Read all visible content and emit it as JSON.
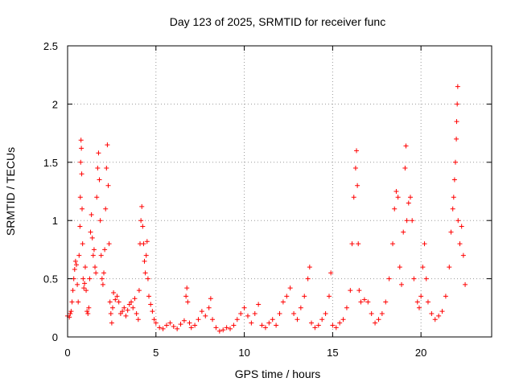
{
  "chart_data": {
    "type": "scatter",
    "title": "Day 123 of 2025, SRMTID for receiver func",
    "xlabel": "GPS time / hours",
    "ylabel": "SRMTID / TECUs",
    "xlim": [
      0,
      24
    ],
    "ylim": [
      0,
      2.5
    ],
    "xticks": [
      0,
      5,
      10,
      15,
      20
    ],
    "yticks": [
      0,
      0.5,
      1,
      1.5,
      2,
      2.5
    ],
    "ytick_labels": [
      "0",
      "0.5",
      "1",
      "1.5",
      "2",
      "2.5"
    ],
    "grid": true,
    "marker": "+",
    "color": "#ff0000",
    "series": [
      {
        "name": "SRMTID",
        "points": [
          [
            0.0,
            0.18
          ],
          [
            0.1,
            0.17
          ],
          [
            0.15,
            0.2
          ],
          [
            0.2,
            0.22
          ],
          [
            0.25,
            0.3
          ],
          [
            0.3,
            0.4
          ],
          [
            0.35,
            0.5
          ],
          [
            0.4,
            0.58
          ],
          [
            0.45,
            0.65
          ],
          [
            0.5,
            0.62
          ],
          [
            0.55,
            0.45
          ],
          [
            0.6,
            0.3
          ],
          [
            0.65,
            0.7
          ],
          [
            0.7,
            0.95
          ],
          [
            0.72,
            1.2
          ],
          [
            0.74,
            1.5
          ],
          [
            0.76,
            1.69
          ],
          [
            0.78,
            1.62
          ],
          [
            0.8,
            1.4
          ],
          [
            0.82,
            1.1
          ],
          [
            0.85,
            0.8
          ],
          [
            0.88,
            0.5
          ],
          [
            0.92,
            0.42
          ],
          [
            0.96,
            0.46
          ],
          [
            1.0,
            0.6
          ],
          [
            1.05,
            0.4
          ],
          [
            1.1,
            0.22
          ],
          [
            1.15,
            0.2
          ],
          [
            1.2,
            0.25
          ],
          [
            1.25,
            0.5
          ],
          [
            1.3,
            0.9
          ],
          [
            1.35,
            1.05
          ],
          [
            1.4,
            0.85
          ],
          [
            1.45,
            0.7
          ],
          [
            1.5,
            0.75
          ],
          [
            1.55,
            0.6
          ],
          [
            1.6,
            0.55
          ],
          [
            1.65,
            1.2
          ],
          [
            1.7,
            1.45
          ],
          [
            1.75,
            1.58
          ],
          [
            1.8,
            1.35
          ],
          [
            1.85,
            1.0
          ],
          [
            1.9,
            0.7
          ],
          [
            1.95,
            0.5
          ],
          [
            2.0,
            0.45
          ],
          [
            2.05,
            0.55
          ],
          [
            2.1,
            0.75
          ],
          [
            2.15,
            1.1
          ],
          [
            2.2,
            1.45
          ],
          [
            2.25,
            1.65
          ],
          [
            2.3,
            1.3
          ],
          [
            2.35,
            0.8
          ],
          [
            2.4,
            0.3
          ],
          [
            2.45,
            0.2
          ],
          [
            2.5,
            0.12
          ],
          [
            2.55,
            0.25
          ],
          [
            2.6,
            0.38
          ],
          [
            2.7,
            0.32
          ],
          [
            2.8,
            0.35
          ],
          [
            2.9,
            0.3
          ],
          [
            3.0,
            0.2
          ],
          [
            3.1,
            0.22
          ],
          [
            3.2,
            0.25
          ],
          [
            3.3,
            0.18
          ],
          [
            3.4,
            0.23
          ],
          [
            3.5,
            0.28
          ],
          [
            3.6,
            0.3
          ],
          [
            3.7,
            0.25
          ],
          [
            3.8,
            0.33
          ],
          [
            3.9,
            0.2
          ],
          [
            4.0,
            0.15
          ],
          [
            4.05,
            0.4
          ],
          [
            4.1,
            0.8
          ],
          [
            4.15,
            1.0
          ],
          [
            4.2,
            1.12
          ],
          [
            4.25,
            0.95
          ],
          [
            4.3,
            0.8
          ],
          [
            4.35,
            0.65
          ],
          [
            4.4,
            0.55
          ],
          [
            4.45,
            0.7
          ],
          [
            4.5,
            0.82
          ],
          [
            4.55,
            0.5
          ],
          [
            4.6,
            0.35
          ],
          [
            4.7,
            0.28
          ],
          [
            4.8,
            0.22
          ],
          [
            4.9,
            0.15
          ],
          [
            5.0,
            0.12
          ],
          [
            5.2,
            0.08
          ],
          [
            5.4,
            0.07
          ],
          [
            5.6,
            0.1
          ],
          [
            5.8,
            0.12
          ],
          [
            6.0,
            0.09
          ],
          [
            6.2,
            0.07
          ],
          [
            6.4,
            0.11
          ],
          [
            6.6,
            0.14
          ],
          [
            6.7,
            0.35
          ],
          [
            6.75,
            0.42
          ],
          [
            6.8,
            0.3
          ],
          [
            6.9,
            0.12
          ],
          [
            7.0,
            0.08
          ],
          [
            7.2,
            0.1
          ],
          [
            7.4,
            0.15
          ],
          [
            7.6,
            0.22
          ],
          [
            7.8,
            0.18
          ],
          [
            8.0,
            0.25
          ],
          [
            8.1,
            0.33
          ],
          [
            8.2,
            0.15
          ],
          [
            8.4,
            0.08
          ],
          [
            8.6,
            0.05
          ],
          [
            8.8,
            0.06
          ],
          [
            9.0,
            0.08
          ],
          [
            9.2,
            0.07
          ],
          [
            9.4,
            0.1
          ],
          [
            9.6,
            0.15
          ],
          [
            9.8,
            0.2
          ],
          [
            10.0,
            0.25
          ],
          [
            10.2,
            0.18
          ],
          [
            10.4,
            0.12
          ],
          [
            10.6,
            0.2
          ],
          [
            10.8,
            0.28
          ],
          [
            11.0,
            0.1
          ],
          [
            11.2,
            0.08
          ],
          [
            11.4,
            0.12
          ],
          [
            11.6,
            0.15
          ],
          [
            11.8,
            0.1
          ],
          [
            12.0,
            0.2
          ],
          [
            12.2,
            0.3
          ],
          [
            12.4,
            0.35
          ],
          [
            12.6,
            0.42
          ],
          [
            12.8,
            0.2
          ],
          [
            13.0,
            0.15
          ],
          [
            13.2,
            0.25
          ],
          [
            13.4,
            0.35
          ],
          [
            13.6,
            0.5
          ],
          [
            13.7,
            0.6
          ],
          [
            13.8,
            0.12
          ],
          [
            14.0,
            0.08
          ],
          [
            14.2,
            0.1
          ],
          [
            14.4,
            0.15
          ],
          [
            14.6,
            0.2
          ],
          [
            14.8,
            0.35
          ],
          [
            14.9,
            0.55
          ],
          [
            15.0,
            0.1
          ],
          [
            15.2,
            0.08
          ],
          [
            15.4,
            0.12
          ],
          [
            15.6,
            0.15
          ],
          [
            15.8,
            0.25
          ],
          [
            16.0,
            0.4
          ],
          [
            16.1,
            0.8
          ],
          [
            16.2,
            1.2
          ],
          [
            16.3,
            1.45
          ],
          [
            16.35,
            1.6
          ],
          [
            16.4,
            1.3
          ],
          [
            16.45,
            0.8
          ],
          [
            16.5,
            0.4
          ],
          [
            16.6,
            0.3
          ],
          [
            16.8,
            0.32
          ],
          [
            17.0,
            0.3
          ],
          [
            17.2,
            0.2
          ],
          [
            17.4,
            0.12
          ],
          [
            17.6,
            0.15
          ],
          [
            17.8,
            0.2
          ],
          [
            18.0,
            0.3
          ],
          [
            18.2,
            0.5
          ],
          [
            18.4,
            0.8
          ],
          [
            18.5,
            1.1
          ],
          [
            18.6,
            1.25
          ],
          [
            18.7,
            1.2
          ],
          [
            18.8,
            0.6
          ],
          [
            18.9,
            0.45
          ],
          [
            19.0,
            0.9
          ],
          [
            19.1,
            1.45
          ],
          [
            19.15,
            1.64
          ],
          [
            19.2,
            1.0
          ],
          [
            19.3,
            1.15
          ],
          [
            19.4,
            1.2
          ],
          [
            19.5,
            1.0
          ],
          [
            19.6,
            0.5
          ],
          [
            19.8,
            0.3
          ],
          [
            19.9,
            0.25
          ],
          [
            20.0,
            0.35
          ],
          [
            20.1,
            0.6
          ],
          [
            20.2,
            0.8
          ],
          [
            20.3,
            0.5
          ],
          [
            20.4,
            0.3
          ],
          [
            20.6,
            0.2
          ],
          [
            20.8,
            0.15
          ],
          [
            21.0,
            0.18
          ],
          [
            21.2,
            0.22
          ],
          [
            21.4,
            0.35
          ],
          [
            21.6,
            0.6
          ],
          [
            21.7,
            0.9
          ],
          [
            21.8,
            1.1
          ],
          [
            21.85,
            1.2
          ],
          [
            21.9,
            1.35
          ],
          [
            21.95,
            1.5
          ],
          [
            22.0,
            1.7
          ],
          [
            22.02,
            1.85
          ],
          [
            22.05,
            2.0
          ],
          [
            22.08,
            2.15
          ],
          [
            22.1,
            1.0
          ],
          [
            22.2,
            0.8
          ],
          [
            22.3,
            0.95
          ],
          [
            22.4,
            0.7
          ],
          [
            22.5,
            0.45
          ]
        ]
      }
    ]
  }
}
